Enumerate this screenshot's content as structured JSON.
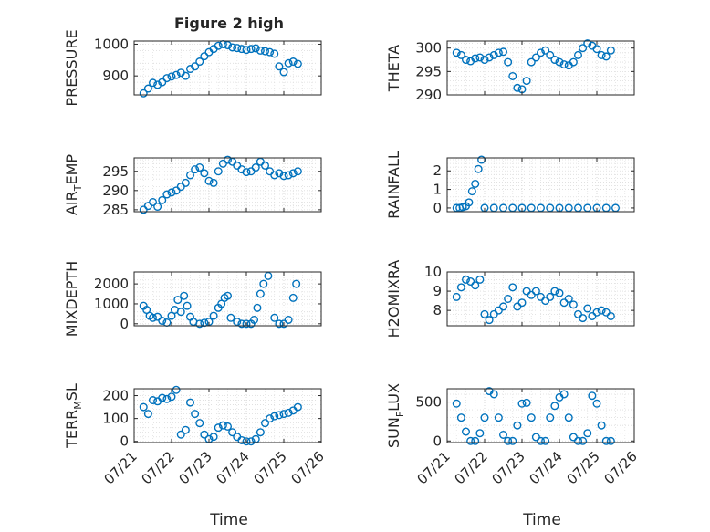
{
  "figure": {
    "title": "Figure 2 high"
  },
  "style": {
    "marker_color": "#0072BD",
    "grid_color": "#d9d9d9",
    "axis_color": "#262626",
    "background": "#ffffff"
  },
  "chart_data": [
    {
      "type": "scatter",
      "ylabel": "PRESSURE",
      "ylim": [
        840,
        1010
      ],
      "yticks": [
        900,
        1000
      ],
      "ytick_labels": [
        "900",
        "1000"
      ],
      "xlim": [
        "07/21",
        "07/26"
      ],
      "grid": true,
      "marker": "circle-open",
      "x": [
        "07/21 06:00",
        "07/21 09:00",
        "07/21 12:00",
        "07/21 15:00",
        "07/21 18:00",
        "07/21 21:00",
        "07/22 00:00",
        "07/22 03:00",
        "07/22 06:00",
        "07/22 09:00",
        "07/22 12:00",
        "07/22 15:00",
        "07/22 18:00",
        "07/22 21:00",
        "07/23 00:00",
        "07/23 03:00",
        "07/23 06:00",
        "07/23 09:00",
        "07/23 12:00",
        "07/23 15:00",
        "07/23 18:00",
        "07/23 21:00",
        "07/24 00:00",
        "07/24 03:00",
        "07/24 06:00",
        "07/24 09:00",
        "07/24 12:00",
        "07/24 15:00",
        "07/24 18:00",
        "07/24 21:00",
        "07/25 00:00",
        "07/25 03:00",
        "07/25 06:00",
        "07/25 09:00"
      ],
      "y": [
        845,
        860,
        878,
        872,
        880,
        893,
        898,
        903,
        910,
        900,
        922,
        930,
        945,
        962,
        975,
        985,
        995,
        1000,
        997,
        990,
        988,
        985,
        982,
        985,
        987,
        980,
        978,
        975,
        970,
        930,
        912,
        940,
        945,
        938
      ]
    },
    {
      "type": "scatter",
      "ylabel": "THETA",
      "ylim": [
        290,
        301.5
      ],
      "yticks": [
        290,
        295,
        300
      ],
      "ytick_labels": [
        "290",
        "295",
        "300"
      ],
      "xlim": [
        "07/21",
        "07/26"
      ],
      "grid": true,
      "marker": "circle-open",
      "x": [
        "07/21 06:00",
        "07/21 09:00",
        "07/21 12:00",
        "07/21 15:00",
        "07/21 18:00",
        "07/21 21:00",
        "07/22 00:00",
        "07/22 03:00",
        "07/22 06:00",
        "07/22 09:00",
        "07/22 12:00",
        "07/22 15:00",
        "07/22 18:00",
        "07/22 21:00",
        "07/23 00:00",
        "07/23 03:00",
        "07/23 06:00",
        "07/23 09:00",
        "07/23 12:00",
        "07/23 15:00",
        "07/23 18:00",
        "07/23 21:00",
        "07/24 00:00",
        "07/24 03:00",
        "07/24 06:00",
        "07/24 09:00",
        "07/24 12:00",
        "07/24 15:00",
        "07/24 18:00",
        "07/24 21:00",
        "07/25 00:00",
        "07/25 03:00",
        "07/25 06:00",
        "07/25 09:00"
      ],
      "y": [
        299,
        298.5,
        297.5,
        297.2,
        297.8,
        298,
        297.5,
        298,
        298.5,
        299,
        299.2,
        297,
        294,
        291.5,
        291.2,
        293,
        297,
        298,
        299,
        299.5,
        298.5,
        297.5,
        297,
        296.5,
        296.3,
        297,
        298.5,
        300,
        301,
        300.5,
        299.8,
        298.5,
        298.2,
        299.5
      ]
    },
    {
      "type": "scatter",
      "ylabel": "AIR_TEMP",
      "ylabel_subscript": "T",
      "ylim": [
        284.5,
        298.5
      ],
      "yticks": [
        285,
        290,
        295
      ],
      "ytick_labels": [
        "285",
        "290",
        "295"
      ],
      "xlim": [
        "07/21",
        "07/26"
      ],
      "grid": true,
      "marker": "circle-open",
      "x": [
        "07/21 06:00",
        "07/21 09:00",
        "07/21 12:00",
        "07/21 15:00",
        "07/21 18:00",
        "07/21 21:00",
        "07/22 00:00",
        "07/22 03:00",
        "07/22 06:00",
        "07/22 09:00",
        "07/22 12:00",
        "07/22 15:00",
        "07/22 18:00",
        "07/22 21:00",
        "07/23 00:00",
        "07/23 03:00",
        "07/23 06:00",
        "07/23 09:00",
        "07/23 12:00",
        "07/23 15:00",
        "07/23 18:00",
        "07/23 21:00",
        "07/24 00:00",
        "07/24 03:00",
        "07/24 06:00",
        "07/24 09:00",
        "07/24 12:00",
        "07/24 15:00",
        "07/24 18:00",
        "07/24 21:00",
        "07/25 00:00",
        "07/25 03:00",
        "07/25 06:00",
        "07/25 09:00"
      ],
      "y": [
        285,
        286,
        287,
        285.8,
        287.5,
        289,
        289.5,
        290,
        291,
        292,
        294,
        295.5,
        296,
        294.5,
        292.5,
        292,
        295,
        297,
        298,
        297.5,
        296.5,
        295.5,
        294.8,
        295,
        296,
        297.5,
        296.5,
        295,
        294,
        294.5,
        293.8,
        294,
        294.5,
        295
      ]
    },
    {
      "type": "scatter",
      "ylabel": "RAINFALL",
      "ylim": [
        -0.2,
        2.7
      ],
      "yticks": [
        0,
        1,
        2
      ],
      "ytick_labels": [
        "0",
        "1",
        "2"
      ],
      "xlim": [
        "07/21",
        "07/26"
      ],
      "grid": true,
      "marker": "circle-open",
      "x": [
        "07/21 06:00",
        "07/21 08:00",
        "07/21 10:00",
        "07/21 12:00",
        "07/21 14:00",
        "07/21 16:00",
        "07/21 18:00",
        "07/21 20:00",
        "07/21 22:00",
        "07/22 00:00",
        "07/22 06:00",
        "07/22 12:00",
        "07/22 18:00",
        "07/23 00:00",
        "07/23 06:00",
        "07/23 12:00",
        "07/23 18:00",
        "07/24 00:00",
        "07/24 06:00",
        "07/24 12:00",
        "07/24 18:00",
        "07/25 00:00",
        "07/25 06:00",
        "07/25 12:00"
      ],
      "y": [
        0,
        0,
        0.05,
        0.1,
        0.3,
        0.9,
        1.3,
        2.1,
        2.6,
        0,
        0,
        0,
        0,
        0,
        0,
        0,
        0,
        0,
        0,
        0,
        0,
        0,
        0,
        0
      ]
    },
    {
      "type": "scatter",
      "ylabel": "MIXDEPTH",
      "ylim": [
        -100,
        2600
      ],
      "yticks": [
        0,
        1000,
        2000
      ],
      "ytick_labels": [
        "0",
        "1000",
        "2000"
      ],
      "xlim": [
        "07/21",
        "07/26"
      ],
      "grid": true,
      "marker": "circle-open",
      "x": [
        "07/21 06:00",
        "07/21 08:00",
        "07/21 10:00",
        "07/21 12:00",
        "07/21 15:00",
        "07/21 18:00",
        "07/21 21:00",
        "07/22 00:00",
        "07/22 02:00",
        "07/22 04:00",
        "07/22 06:00",
        "07/22 08:00",
        "07/22 10:00",
        "07/22 12:00",
        "07/22 14:00",
        "07/22 18:00",
        "07/22 21:00",
        "07/23 00:00",
        "07/23 03:00",
        "07/23 06:00",
        "07/23 08:00",
        "07/23 10:00",
        "07/23 12:00",
        "07/23 14:00",
        "07/23 18:00",
        "07/23 21:00",
        "07/24 00:00",
        "07/24 03:00",
        "07/24 05:00",
        "07/24 07:00",
        "07/24 09:00",
        "07/24 11:00",
        "07/24 14:00",
        "07/24 18:00",
        "07/24 21:00",
        "07/25 00:00",
        "07/25 03:00",
        "07/25 06:00",
        "07/25 08:00"
      ],
      "y": [
        900,
        700,
        400,
        300,
        350,
        150,
        60,
        400,
        700,
        1200,
        600,
        1400,
        900,
        350,
        100,
        0,
        50,
        100,
        400,
        800,
        1000,
        1300,
        1400,
        300,
        100,
        0,
        0,
        0,
        200,
        800,
        1500,
        2000,
        2400,
        300,
        0,
        0,
        200,
        1300,
        2000
      ]
    },
    {
      "type": "scatter",
      "ylabel": "H2OMIXRA",
      "ylim": [
        7.2,
        10
      ],
      "yticks": [
        8,
        9,
        10
      ],
      "ytick_labels": [
        "8",
        "9",
        "10"
      ],
      "xlim": [
        "07/21",
        "07/26"
      ],
      "grid": true,
      "marker": "circle-open",
      "x": [
        "07/21 06:00",
        "07/21 09:00",
        "07/21 12:00",
        "07/21 15:00",
        "07/21 18:00",
        "07/21 21:00",
        "07/22 00:00",
        "07/22 03:00",
        "07/22 06:00",
        "07/22 09:00",
        "07/22 12:00",
        "07/22 15:00",
        "07/22 18:00",
        "07/22 21:00",
        "07/23 00:00",
        "07/23 03:00",
        "07/23 06:00",
        "07/23 09:00",
        "07/23 12:00",
        "07/23 15:00",
        "07/23 18:00",
        "07/23 21:00",
        "07/24 00:00",
        "07/24 03:00",
        "07/24 06:00",
        "07/24 09:00",
        "07/24 12:00",
        "07/24 15:00",
        "07/24 18:00",
        "07/24 21:00",
        "07/25 00:00",
        "07/25 03:00",
        "07/25 06:00",
        "07/25 09:00"
      ],
      "y": [
        8.7,
        9.2,
        9.6,
        9.5,
        9.3,
        9.6,
        7.8,
        7.5,
        7.8,
        8,
        8.2,
        8.6,
        9.2,
        8.2,
        8.4,
        9,
        8.8,
        9,
        8.7,
        8.5,
        8.7,
        9,
        8.9,
        8.4,
        8.6,
        8.3,
        7.8,
        7.6,
        8.1,
        7.7,
        7.9,
        8,
        7.9,
        7.7
      ]
    },
    {
      "type": "scatter",
      "ylabel": "TERR_MSL",
      "ylabel_subscript": "M",
      "ylim": [
        -5,
        230
      ],
      "yticks": [
        0,
        100,
        200
      ],
      "ytick_labels": [
        "0",
        "100",
        "200"
      ],
      "xlim": [
        "07/21",
        "07/26"
      ],
      "grid": true,
      "marker": "circle-open",
      "x": [
        "07/21 06:00",
        "07/21 09:00",
        "07/21 12:00",
        "07/21 15:00",
        "07/21 18:00",
        "07/21 21:00",
        "07/22 00:00",
        "07/22 03:00",
        "07/22 06:00",
        "07/22 09:00",
        "07/22 12:00",
        "07/22 15:00",
        "07/22 18:00",
        "07/22 21:00",
        "07/23 00:00",
        "07/23 03:00",
        "07/23 06:00",
        "07/23 09:00",
        "07/23 12:00",
        "07/23 15:00",
        "07/23 18:00",
        "07/23 21:00",
        "07/24 00:00",
        "07/24 03:00",
        "07/24 06:00",
        "07/24 09:00",
        "07/24 12:00",
        "07/24 15:00",
        "07/24 18:00",
        "07/24 21:00",
        "07/25 00:00",
        "07/25 03:00",
        "07/25 06:00",
        "07/25 09:00"
      ],
      "y": [
        150,
        120,
        180,
        175,
        190,
        185,
        195,
        225,
        30,
        50,
        170,
        120,
        80,
        30,
        10,
        20,
        60,
        70,
        65,
        40,
        20,
        5,
        0,
        0,
        10,
        40,
        80,
        100,
        110,
        115,
        120,
        125,
        135,
        150
      ]
    },
    {
      "type": "scatter",
      "ylabel": "SUN_FLUX",
      "ylabel_subscript": "F",
      "ylim": [
        -20,
        670
      ],
      "yticks": [
        0,
        500
      ],
      "ytick_labels": [
        "0",
        "500"
      ],
      "xlim": [
        "07/21",
        "07/26"
      ],
      "grid": true,
      "marker": "circle-open",
      "x": [
        "07/21 06:00",
        "07/21 09:00",
        "07/21 12:00",
        "07/21 15:00",
        "07/21 18:00",
        "07/21 21:00",
        "07/22 00:00",
        "07/22 03:00",
        "07/22 06:00",
        "07/22 09:00",
        "07/22 12:00",
        "07/22 15:00",
        "07/22 18:00",
        "07/22 21:00",
        "07/23 00:00",
        "07/23 03:00",
        "07/23 06:00",
        "07/23 09:00",
        "07/23 12:00",
        "07/23 15:00",
        "07/23 18:00",
        "07/23 21:00",
        "07/24 00:00",
        "07/24 03:00",
        "07/24 06:00",
        "07/24 09:00",
        "07/24 12:00",
        "07/24 15:00",
        "07/24 18:00",
        "07/24 21:00",
        "07/25 00:00",
        "07/25 03:00",
        "07/25 06:00",
        "07/25 09:00"
      ],
      "y": [
        480,
        300,
        120,
        0,
        0,
        100,
        300,
        640,
        600,
        300,
        80,
        0,
        0,
        200,
        480,
        490,
        300,
        50,
        0,
        0,
        300,
        450,
        560,
        600,
        300,
        50,
        0,
        0,
        100,
        580,
        480,
        200,
        0,
        0
      ]
    }
  ],
  "xaxis": {
    "ticks": [
      "07/21",
      "07/22",
      "07/23",
      "07/24",
      "07/25",
      "07/26"
    ],
    "label": "Time"
  }
}
